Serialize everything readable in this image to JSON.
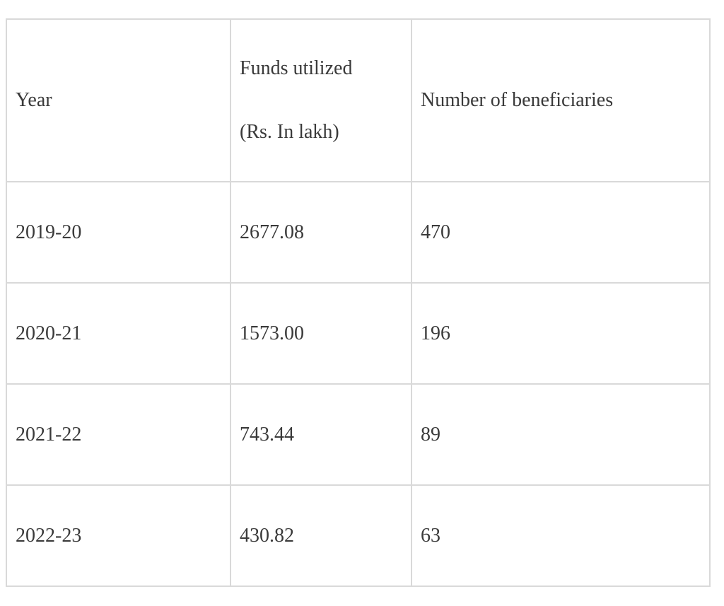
{
  "table": {
    "headers": {
      "year": "Year",
      "funds_line1": "Funds utilized",
      "funds_line2": "(Rs. In lakh)",
      "beneficiaries": "Number of beneficiaries"
    },
    "rows": [
      {
        "year": "2019-20",
        "funds": "2677.08",
        "beneficiaries": "470"
      },
      {
        "year": "2020-21",
        "funds": "1573.00",
        "beneficiaries": "196"
      },
      {
        "year": "2021-22",
        "funds": "743.44",
        "beneficiaries": "89"
      },
      {
        "year": "2022-23",
        "funds": "430.82",
        "beneficiaries": "63"
      }
    ]
  },
  "colors": {
    "border": "#d9d9d9",
    "text": "#3a3a3a",
    "background": "#ffffff"
  }
}
